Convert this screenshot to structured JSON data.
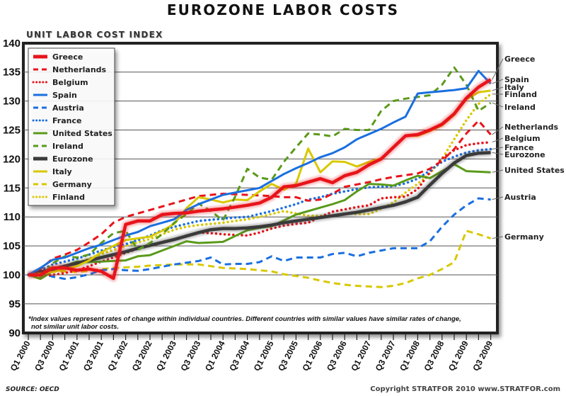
{
  "chart_data": {
    "type": "line",
    "title": "EUROZONE LABOR COSTS",
    "subtitle": "UNIT LABOR COST INDEX",
    "xlabel": "",
    "ylabel": "",
    "ylim": [
      90,
      140
    ],
    "yticks": [
      90,
      95,
      100,
      105,
      110,
      115,
      120,
      125,
      130,
      135,
      140
    ],
    "grid": true,
    "legend_position": "top-left",
    "x": [
      "Q1 2000",
      "Q2 2000",
      "Q3 2000",
      "Q4 2000",
      "Q1 2001",
      "Q2 2001",
      "Q3 2001",
      "Q4 2001",
      "Q1 2002",
      "Q2 2002",
      "Q3 2002",
      "Q4 2002",
      "Q1 2003",
      "Q2 2003",
      "Q3 2003",
      "Q4 2003",
      "Q1 2004",
      "Q2 2004",
      "Q3 2004",
      "Q4 2004",
      "Q1 2005",
      "Q2 2005",
      "Q3 2005",
      "Q4 2005",
      "Q1 2006",
      "Q2 2006",
      "Q3 2006",
      "Q4 2006",
      "Q1 2007",
      "Q2 2007",
      "Q3 2007",
      "Q4 2007",
      "Q1 2008",
      "Q2 2008",
      "Q3 2008",
      "Q4 2008",
      "Q1 2009",
      "Q2 2009",
      "Q3 2009"
    ],
    "xtick_labels": [
      "Q1 2000",
      "Q3 2000",
      "Q1 2001",
      "Q3 2001",
      "Q1 2002",
      "Q3 2002",
      "Q1 2003",
      "Q3 2003",
      "Q1 2004",
      "Q3 2004",
      "Q1 2005",
      "Q3 2005",
      "Q1 2006",
      "Q3 2006",
      "Q1 2007",
      "Q3 2007",
      "Q1 2008",
      "Q3 2008",
      "Q1 2009",
      "Q3 2009"
    ],
    "series": [
      {
        "name": "Greece",
        "color": "#e8141b",
        "style": "solid-thick",
        "values": [
          100,
          100,
          101.2,
          101.2,
          100.8,
          101,
          100.6,
          99.4,
          108.7,
          109.3,
          109.3,
          110.4,
          110.6,
          110.7,
          111,
          111.2,
          111.4,
          111.7,
          112,
          112.4,
          113.4,
          115.2,
          115.4,
          116,
          116.6,
          115.9,
          117.1,
          117.7,
          119,
          120,
          122,
          124,
          124.2,
          125,
          126,
          127.8,
          130.5,
          132.4,
          133.7
        ]
      },
      {
        "name": "Netherlands",
        "color": "#e8141b",
        "style": "dashed",
        "values": [
          100,
          101,
          102.8,
          103.5,
          104.3,
          105.6,
          107,
          109,
          110,
          110.6,
          111.2,
          111.8,
          112.4,
          113,
          113.6,
          113.8,
          114,
          113.9,
          113.8,
          113.7,
          113.6,
          113.4,
          113.4,
          112.8,
          113,
          114,
          115.2,
          115.6,
          116,
          116.5,
          116.9,
          117.2,
          117.5,
          118.3,
          119.7,
          121.7,
          124.4,
          126.6,
          124.2
        ]
      },
      {
        "name": "Belgium",
        "color": "#e8141b",
        "style": "dotted",
        "values": [
          100,
          99.8,
          100,
          100.3,
          100.8,
          101.5,
          102.3,
          103,
          103.8,
          104.5,
          105,
          105.6,
          106.1,
          106.8,
          107.3,
          107.2,
          107,
          106.9,
          106.8,
          107.3,
          108,
          108.5,
          108.8,
          109,
          110,
          110.9,
          111.3,
          111.7,
          112,
          113.2,
          113.4,
          113.5,
          114.8,
          117.7,
          120.1,
          121.5,
          122.4,
          122.7,
          122.9
        ]
      },
      {
        "name": "Spain",
        "color": "#1a6fe0",
        "style": "solid",
        "values": [
          100,
          101.2,
          102.6,
          103,
          103.8,
          104.6,
          105.2,
          106,
          106.8,
          107.4,
          108.4,
          109,
          109.6,
          111.2,
          112.2,
          113,
          113.8,
          114.2,
          114.6,
          115,
          116.2,
          117.4,
          118.4,
          119.3,
          120.3,
          121,
          122,
          123.4,
          124.3,
          125.2,
          126.3,
          127.3,
          131.3,
          131.5,
          131.7,
          131.9,
          132.2,
          135.2,
          133
        ]
      },
      {
        "name": "Austria",
        "color": "#1a6fe0",
        "style": "dashed",
        "values": [
          100,
          100.3,
          99.7,
          99.3,
          99.6,
          100.1,
          100.8,
          101,
          100.8,
          100.7,
          101,
          101.4,
          101.8,
          102.1,
          102.4,
          103,
          101.8,
          101.9,
          101.9,
          102.2,
          103.2,
          102.4,
          103,
          103,
          103,
          103.6,
          103.8,
          103.2,
          103.8,
          104.2,
          104.6,
          104.6,
          104.6,
          105.8,
          108.3,
          110.4,
          112,
          113.2,
          113
        ]
      },
      {
        "name": "France",
        "color": "#1a6fe0",
        "style": "dotted",
        "values": [
          100,
          100.8,
          101.8,
          102.3,
          102.8,
          103.5,
          104.2,
          104.8,
          105.3,
          106,
          106.8,
          107.7,
          108.3,
          108.8,
          109.3,
          109.5,
          109.7,
          109.9,
          110,
          110.5,
          111,
          111.6,
          112.2,
          113,
          113.4,
          114,
          114.4,
          114.8,
          115.1,
          115.2,
          115.3,
          115.8,
          116.6,
          118,
          119.5,
          120.4,
          121.1,
          121.5,
          121.7
        ]
      },
      {
        "name": "United States",
        "color": "#5a9a1a",
        "style": "solid",
        "values": [
          100,
          99.3,
          100.6,
          101.5,
          102.3,
          102.2,
          102.3,
          102.4,
          102.5,
          103.2,
          103.4,
          104.2,
          105,
          105.8,
          105.5,
          105.6,
          105.7,
          106.7,
          107.7,
          108.1,
          108.4,
          109.4,
          110.4,
          111,
          111.6,
          112.2,
          112.9,
          114.4,
          115.7,
          115.6,
          115.4,
          116.3,
          117.1,
          116.7,
          117.9,
          119.1,
          117.9,
          117.8,
          117.7
        ]
      },
      {
        "name": "Ireland",
        "color": "#5a9a1a",
        "style": "dashed",
        "values": [
          100,
          99.5,
          102,
          103.2,
          103,
          103.5,
          105.5,
          107.2,
          107.6,
          104.3,
          105.5,
          107,
          109,
          110.5,
          112.3,
          111,
          109.4,
          113.5,
          118.3,
          116.8,
          116.4,
          119.5,
          122,
          124.4,
          124.2,
          123.9,
          125.2,
          125,
          125,
          128.3,
          130,
          130.4,
          130.7,
          131,
          132.8,
          135.8,
          132.8,
          128.3,
          129.7
        ]
      },
      {
        "name": "Eurozone",
        "color": "#3a3a3a",
        "style": "solid-thick",
        "values": [
          100,
          100.5,
          101,
          101.5,
          102,
          102.5,
          103,
          103.5,
          104,
          104.6,
          105.1,
          105.6,
          106.1,
          106.7,
          107.3,
          107.8,
          108,
          108,
          108.1,
          108.3,
          108.6,
          109,
          109.3,
          109.6,
          109.9,
          110.2,
          110.5,
          110.8,
          111.2,
          111.6,
          112,
          112.6,
          113.4,
          115.5,
          117.5,
          119.3,
          120.6,
          121,
          121.1
        ]
      },
      {
        "name": "Italy",
        "color": "#d8c800",
        "style": "solid",
        "values": [
          100,
          100.2,
          100.5,
          101,
          101.5,
          102.5,
          103.9,
          105,
          106,
          106.3,
          106.6,
          107.6,
          108.8,
          111.5,
          113.4,
          113,
          112.5,
          113,
          112.9,
          114.4,
          115.7,
          114.7,
          115.7,
          121.8,
          117.7,
          119.6,
          119.5,
          118.7,
          119.5,
          120.1,
          122,
          124,
          124,
          124.8,
          125.8,
          127.6,
          130.3,
          131.5,
          131.8
        ]
      },
      {
        "name": "Germany",
        "color": "#d8c800",
        "style": "dashed",
        "values": [
          100,
          100.2,
          100.5,
          100.6,
          100.5,
          100.7,
          101,
          101.2,
          101.3,
          101.4,
          101.6,
          101.7,
          101.8,
          101.8,
          101.8,
          101.5,
          101.2,
          101.1,
          101,
          100.8,
          100.6,
          100.1,
          99.8,
          99.5,
          99,
          98.6,
          98.3,
          98.1,
          98,
          97.9,
          98.1,
          98.6,
          99.4,
          100,
          101,
          102.2,
          107.6,
          107,
          106.3
        ]
      },
      {
        "name": "Finland",
        "color": "#d8c800",
        "style": "dotted",
        "values": [
          100,
          100.5,
          101,
          101.5,
          102,
          102.8,
          103.6,
          104.3,
          105,
          105.6,
          106.2,
          107,
          107.8,
          108.3,
          108.6,
          108.8,
          109,
          109.3,
          109.6,
          110,
          110.5,
          111,
          110.6,
          110.2,
          110.2,
          110.2,
          110.6,
          110.5,
          110.5,
          111.4,
          112.5,
          114.2,
          115.7,
          117.5,
          120,
          123.4,
          126.7,
          129.5,
          131.2
        ]
      }
    ],
    "right_labels": [
      "Greece",
      "Spain",
      "Italy",
      "Finland",
      "Ireland",
      "Netherlands",
      "Belgium",
      "France",
      "Eurozone",
      "United States",
      "Austria",
      "Germany"
    ],
    "annotation": "*Index values represent rates of change within individual countries.  Different countries with similar values have similar rates of change,",
    "annotation_line2": "not similar unit labor costs."
  },
  "footer": {
    "source": "SOURCE:  OECD",
    "copyright": "Copyright STRATFOR 2010   www.STRATFOR.com"
  }
}
